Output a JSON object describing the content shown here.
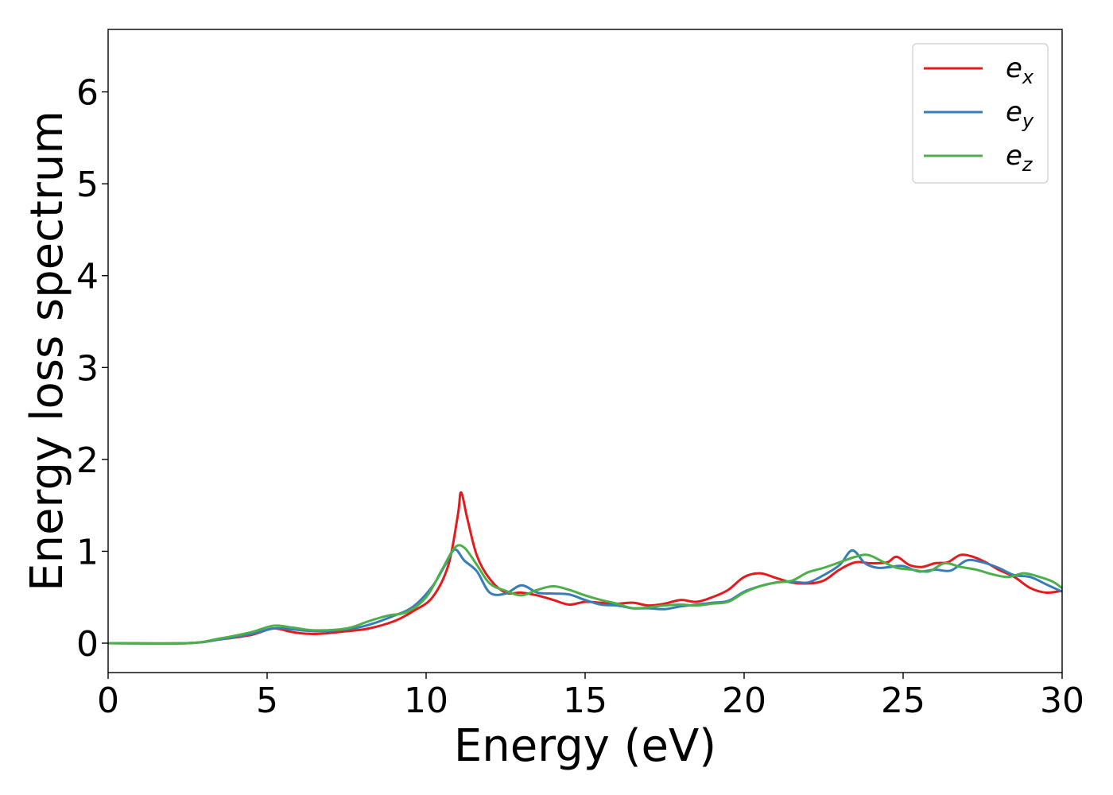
{
  "chart_data": {
    "type": "line",
    "title": "",
    "xlabel": "Energy (eV)",
    "ylabel": "Energy loss spectrum",
    "xlim": [
      0,
      30
    ],
    "ylim": [
      -0.32,
      6.68
    ],
    "xticks": [
      "0",
      "5",
      "10",
      "15",
      "20",
      "25",
      "30"
    ],
    "yticks": [
      "0",
      "1",
      "2",
      "3",
      "4",
      "5",
      "6"
    ],
    "grid": false,
    "legend_position": "top-right",
    "series": [
      {
        "name": "e_x",
        "legend_base": "e",
        "legend_sub": "x",
        "color": "#e41a1c",
        "x": [
          0,
          2.5,
          3.5,
          4.5,
          5.2,
          5.8,
          6.5,
          7.5,
          8.2,
          9,
          9.6,
          10.2,
          10.7,
          11.0,
          11.1,
          11.3,
          11.6,
          12.0,
          12.5,
          13.0,
          13.5,
          14.0,
          14.5,
          15.0,
          15.5,
          16.0,
          16.5,
          17.0,
          17.5,
          18.0,
          18.5,
          19.0,
          19.5,
          20.0,
          20.5,
          21.0,
          21.5,
          22.0,
          22.5,
          23.0,
          23.5,
          24.0,
          24.5,
          24.8,
          25.2,
          25.6,
          26.0,
          26.4,
          26.8,
          27.2,
          27.6,
          28.0,
          28.5,
          29.0,
          29.5,
          30.0
        ],
        "values": [
          0.0,
          0.0,
          0.04,
          0.09,
          0.16,
          0.12,
          0.1,
          0.13,
          0.16,
          0.24,
          0.35,
          0.5,
          0.85,
          1.4,
          1.64,
          1.35,
          0.95,
          0.7,
          0.55,
          0.55,
          0.52,
          0.47,
          0.42,
          0.45,
          0.44,
          0.43,
          0.44,
          0.41,
          0.43,
          0.47,
          0.45,
          0.5,
          0.58,
          0.72,
          0.76,
          0.71,
          0.66,
          0.65,
          0.68,
          0.8,
          0.88,
          0.87,
          0.88,
          0.94,
          0.85,
          0.83,
          0.87,
          0.88,
          0.96,
          0.94,
          0.88,
          0.8,
          0.72,
          0.6,
          0.55,
          0.57
        ]
      },
      {
        "name": "e_y",
        "legend_base": "e",
        "legend_sub": "y",
        "color": "#377eb8",
        "x": [
          0,
          2.5,
          3.5,
          4.5,
          5.2,
          5.8,
          6.5,
          7.5,
          8.2,
          9,
          9.6,
          10.2,
          10.6,
          10.9,
          11.2,
          11.6,
          12.0,
          12.5,
          13.0,
          13.5,
          14.0,
          14.5,
          15.0,
          15.5,
          16.0,
          16.5,
          17.0,
          17.5,
          18.0,
          18.5,
          19.0,
          19.5,
          20.0,
          20.5,
          21.0,
          21.5,
          22.0,
          22.5,
          23.0,
          23.4,
          23.8,
          24.2,
          24.6,
          25.0,
          25.5,
          26.0,
          26.5,
          27.0,
          27.5,
          28.0,
          28.5,
          29.0,
          29.5,
          30.0
        ],
        "values": [
          0.0,
          0.0,
          0.04,
          0.1,
          0.16,
          0.15,
          0.13,
          0.15,
          0.2,
          0.3,
          0.4,
          0.62,
          0.85,
          1.02,
          0.9,
          0.78,
          0.55,
          0.54,
          0.63,
          0.55,
          0.54,
          0.53,
          0.47,
          0.42,
          0.41,
          0.38,
          0.38,
          0.37,
          0.4,
          0.42,
          0.44,
          0.46,
          0.56,
          0.62,
          0.66,
          0.67,
          0.66,
          0.74,
          0.85,
          1.01,
          0.87,
          0.82,
          0.83,
          0.84,
          0.78,
          0.8,
          0.79,
          0.9,
          0.88,
          0.82,
          0.74,
          0.72,
          0.64,
          0.56
        ]
      },
      {
        "name": "e_z",
        "legend_base": "e",
        "legend_sub": "z",
        "color": "#4daf4a",
        "x": [
          0,
          2.5,
          3.5,
          4.5,
          5.2,
          5.8,
          6.5,
          7.5,
          8.2,
          8.8,
          9.4,
          10.0,
          10.5,
          10.9,
          11.2,
          11.6,
          12.0,
          12.5,
          13.0,
          13.5,
          14.0,
          14.5,
          15.0,
          15.5,
          16.0,
          16.5,
          17.0,
          17.5,
          18.0,
          18.5,
          19.0,
          19.5,
          20.0,
          20.5,
          21.0,
          21.5,
          22.0,
          22.5,
          23.0,
          23.5,
          23.9,
          24.4,
          24.8,
          25.3,
          25.8,
          26.3,
          26.8,
          27.3,
          27.8,
          28.3,
          28.8,
          29.3,
          29.7,
          30.0
        ],
        "values": [
          0.0,
          0.0,
          0.05,
          0.12,
          0.19,
          0.17,
          0.14,
          0.16,
          0.24,
          0.3,
          0.34,
          0.5,
          0.8,
          1.04,
          1.04,
          0.85,
          0.65,
          0.57,
          0.52,
          0.58,
          0.62,
          0.58,
          0.52,
          0.47,
          0.43,
          0.38,
          0.39,
          0.41,
          0.42,
          0.41,
          0.43,
          0.45,
          0.55,
          0.62,
          0.66,
          0.68,
          0.77,
          0.82,
          0.88,
          0.94,
          0.96,
          0.88,
          0.82,
          0.8,
          0.78,
          0.87,
          0.83,
          0.8,
          0.75,
          0.72,
          0.76,
          0.72,
          0.67,
          0.6
        ]
      }
    ]
  }
}
